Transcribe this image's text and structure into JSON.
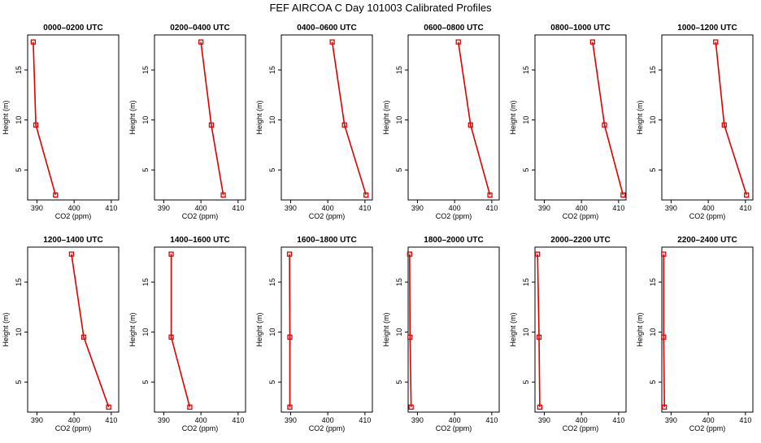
{
  "title": "FEF AIRCOA C  Day 101003  Calibrated Profiles",
  "colors": {
    "profile_line": "#dd0000",
    "axis": "#000000"
  },
  "chart_data": [
    {
      "type": "line",
      "title": "0000–0200 UTC",
      "xlabel": "CO2 (ppm)",
      "ylabel": "Height (m)",
      "xlim": [
        387.5,
        412
      ],
      "ylim": [
        2,
        18.5
      ],
      "xticks": [
        390,
        400,
        410
      ],
      "yticks": [
        5,
        10,
        15
      ],
      "series": [
        {
          "x": [
            395.0,
            389.7,
            389.0
          ],
          "y": [
            2.5,
            9.5,
            17.8
          ]
        }
      ]
    },
    {
      "type": "line",
      "title": "0200–0400 UTC",
      "xlabel": "CO2 (ppm)",
      "ylabel": "Height (m)",
      "xlim": [
        387.5,
        412
      ],
      "ylim": [
        2,
        18.5
      ],
      "xticks": [
        390,
        400,
        410
      ],
      "yticks": [
        5,
        10,
        15
      ],
      "series": [
        {
          "x": [
            406.0,
            402.8,
            400.0
          ],
          "y": [
            2.5,
            9.5,
            17.8
          ]
        }
      ]
    },
    {
      "type": "line",
      "title": "0400–0600 UTC",
      "xlabel": "CO2 (ppm)",
      "ylabel": "Height (m)",
      "xlim": [
        387.5,
        412
      ],
      "ylim": [
        2,
        18.5
      ],
      "xticks": [
        390,
        400,
        410
      ],
      "yticks": [
        5,
        10,
        15
      ],
      "series": [
        {
          "x": [
            410.3,
            404.5,
            401.2
          ],
          "y": [
            2.5,
            9.5,
            17.8
          ]
        }
      ]
    },
    {
      "type": "line",
      "title": "0600–0800 UTC",
      "xlabel": "CO2 (ppm)",
      "ylabel": "Height (m)",
      "xlim": [
        387.5,
        412
      ],
      "ylim": [
        2,
        18.5
      ],
      "xticks": [
        390,
        400,
        410
      ],
      "yticks": [
        5,
        10,
        15
      ],
      "series": [
        {
          "x": [
            409.5,
            404.3,
            401.0
          ],
          "y": [
            2.5,
            9.5,
            17.8
          ]
        }
      ]
    },
    {
      "type": "line",
      "title": "0800–1000 UTC",
      "xlabel": "CO2 (ppm)",
      "ylabel": "Height (m)",
      "xlim": [
        387.5,
        412
      ],
      "ylim": [
        2,
        18.5
      ],
      "xticks": [
        390,
        400,
        410
      ],
      "yticks": [
        5,
        10,
        15
      ],
      "series": [
        {
          "x": [
            411.2,
            406.2,
            403.0
          ],
          "y": [
            2.5,
            9.5,
            17.8
          ]
        }
      ]
    },
    {
      "type": "line",
      "title": "1000–1200 UTC",
      "xlabel": "CO2 (ppm)",
      "ylabel": "Height (m)",
      "xlim": [
        387.5,
        412
      ],
      "ylim": [
        2,
        18.5
      ],
      "xticks": [
        390,
        400,
        410
      ],
      "yticks": [
        5,
        10,
        15
      ],
      "series": [
        {
          "x": [
            410.3,
            404.3,
            402.0
          ],
          "y": [
            2.5,
            9.5,
            17.8
          ]
        }
      ]
    },
    {
      "type": "line",
      "title": "1200–1400 UTC",
      "xlabel": "CO2 (ppm)",
      "ylabel": "Height (m)",
      "xlim": [
        387.5,
        412
      ],
      "ylim": [
        2,
        18.5
      ],
      "xticks": [
        390,
        400,
        410
      ],
      "yticks": [
        5,
        10,
        15
      ],
      "series": [
        {
          "x": [
            409.3,
            402.6,
            399.3
          ],
          "y": [
            2.5,
            9.5,
            17.8
          ]
        }
      ]
    },
    {
      "type": "line",
      "title": "1400–1600 UTC",
      "xlabel": "CO2 (ppm)",
      "ylabel": "Height (m)",
      "xlim": [
        387.5,
        412
      ],
      "ylim": [
        2,
        18.5
      ],
      "xticks": [
        390,
        400,
        410
      ],
      "yticks": [
        5,
        10,
        15
      ],
      "series": [
        {
          "x": [
            397.0,
            392.0,
            392.0
          ],
          "y": [
            2.5,
            9.5,
            17.8
          ]
        }
      ]
    },
    {
      "type": "line",
      "title": "1600–1800 UTC",
      "xlabel": "CO2 (ppm)",
      "ylabel": "Height (m)",
      "xlim": [
        387.5,
        412
      ],
      "ylim": [
        2,
        18.5
      ],
      "xticks": [
        390,
        400,
        410
      ],
      "yticks": [
        5,
        10,
        15
      ],
      "series": [
        {
          "x": [
            389.8,
            389.8,
            389.7
          ],
          "y": [
            2.5,
            9.5,
            17.8
          ]
        }
      ]
    },
    {
      "type": "line",
      "title": "1800–2000 UTC",
      "xlabel": "CO2 (ppm)",
      "ylabel": "Height (m)",
      "xlim": [
        387.5,
        412
      ],
      "ylim": [
        2,
        18.5
      ],
      "xticks": [
        390,
        400,
        410
      ],
      "yticks": [
        5,
        10,
        15
      ],
      "series": [
        {
          "x": [
            388.3,
            388.0,
            387.9
          ],
          "y": [
            2.5,
            9.5,
            17.8
          ]
        }
      ]
    },
    {
      "type": "line",
      "title": "2000–2200 UTC",
      "xlabel": "CO2 (ppm)",
      "ylabel": "Height (m)",
      "xlim": [
        387.5,
        412
      ],
      "ylim": [
        2,
        18.5
      ],
      "xticks": [
        390,
        400,
        410
      ],
      "yticks": [
        5,
        10,
        15
      ],
      "series": [
        {
          "x": [
            388.8,
            388.6,
            388.2
          ],
          "y": [
            2.5,
            9.5,
            17.8
          ]
        }
      ]
    },
    {
      "type": "line",
      "title": "2200–2400 UTC",
      "xlabel": "CO2 (ppm)",
      "ylabel": "Height (m)",
      "xlim": [
        387.5,
        412
      ],
      "ylim": [
        2,
        18.5
      ],
      "xticks": [
        390,
        400,
        410
      ],
      "yticks": [
        5,
        10,
        15
      ],
      "series": [
        {
          "x": [
            388.2,
            388.0,
            388.0
          ],
          "y": [
            2.5,
            9.5,
            17.8
          ]
        }
      ]
    }
  ]
}
